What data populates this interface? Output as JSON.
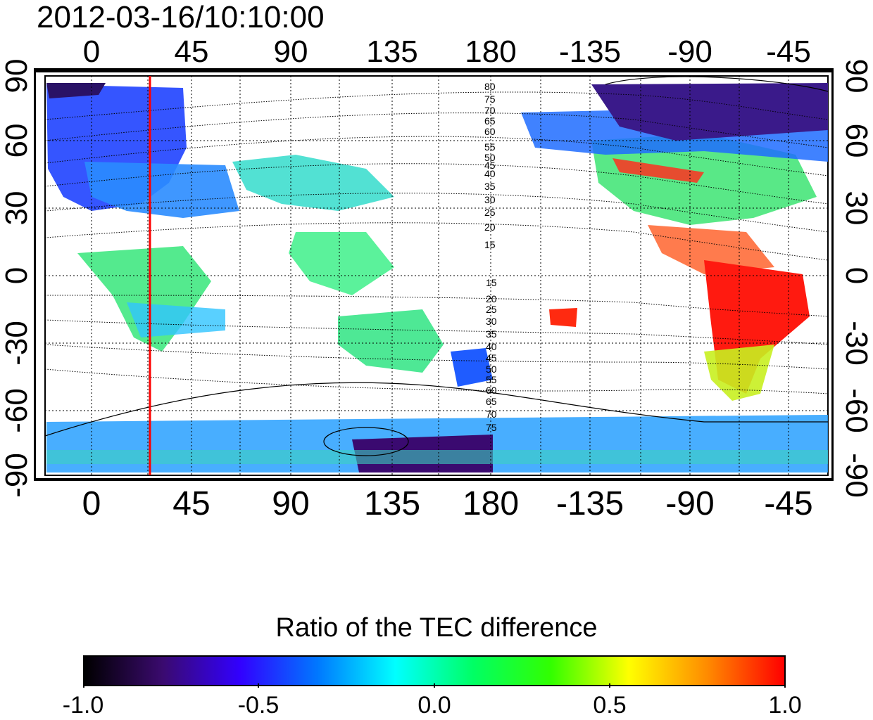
{
  "timestamp": "2012-03-16/10:10:00",
  "map": {
    "top_lon_labels": [
      "0",
      "45",
      "90",
      "135",
      "180",
      "-135",
      "-90",
      "-45"
    ],
    "bottom_lon_labels": [
      "0",
      "45",
      "90",
      "135",
      "180",
      "-135",
      "-90",
      "-45"
    ],
    "left_lat_labels": [
      "90",
      "60",
      "30",
      "0",
      "-30",
      "-60",
      "-90"
    ],
    "right_lat_labels": [
      "90",
      "60",
      "30",
      "0",
      "-30",
      "-60",
      "-90"
    ],
    "contour_labels_north": [
      "80",
      "75",
      "70",
      "65",
      "60",
      "55",
      "50",
      "45",
      "40",
      "35",
      "30",
      "25",
      "20",
      "15"
    ],
    "contour_labels_south": [
      "15",
      "20",
      "25",
      "30",
      "35",
      "40",
      "45",
      "50",
      "55",
      "60",
      "65",
      "70",
      "75"
    ],
    "highlight_meridian_color": "#ff0000"
  },
  "colorbar": {
    "title": "Ratio of the TEC difference",
    "tick_labels": [
      "-1.0",
      "-0.5",
      "0.0",
      "0.5",
      "1.0"
    ],
    "range": [
      -1.0,
      1.0
    ],
    "colors": [
      "#000000",
      "#3a0a6e",
      "#3200ff",
      "#0078ff",
      "#00ffff",
      "#00ff64",
      "#32ff00",
      "#ffff00",
      "#ff8c00",
      "#ff0000"
    ]
  }
}
